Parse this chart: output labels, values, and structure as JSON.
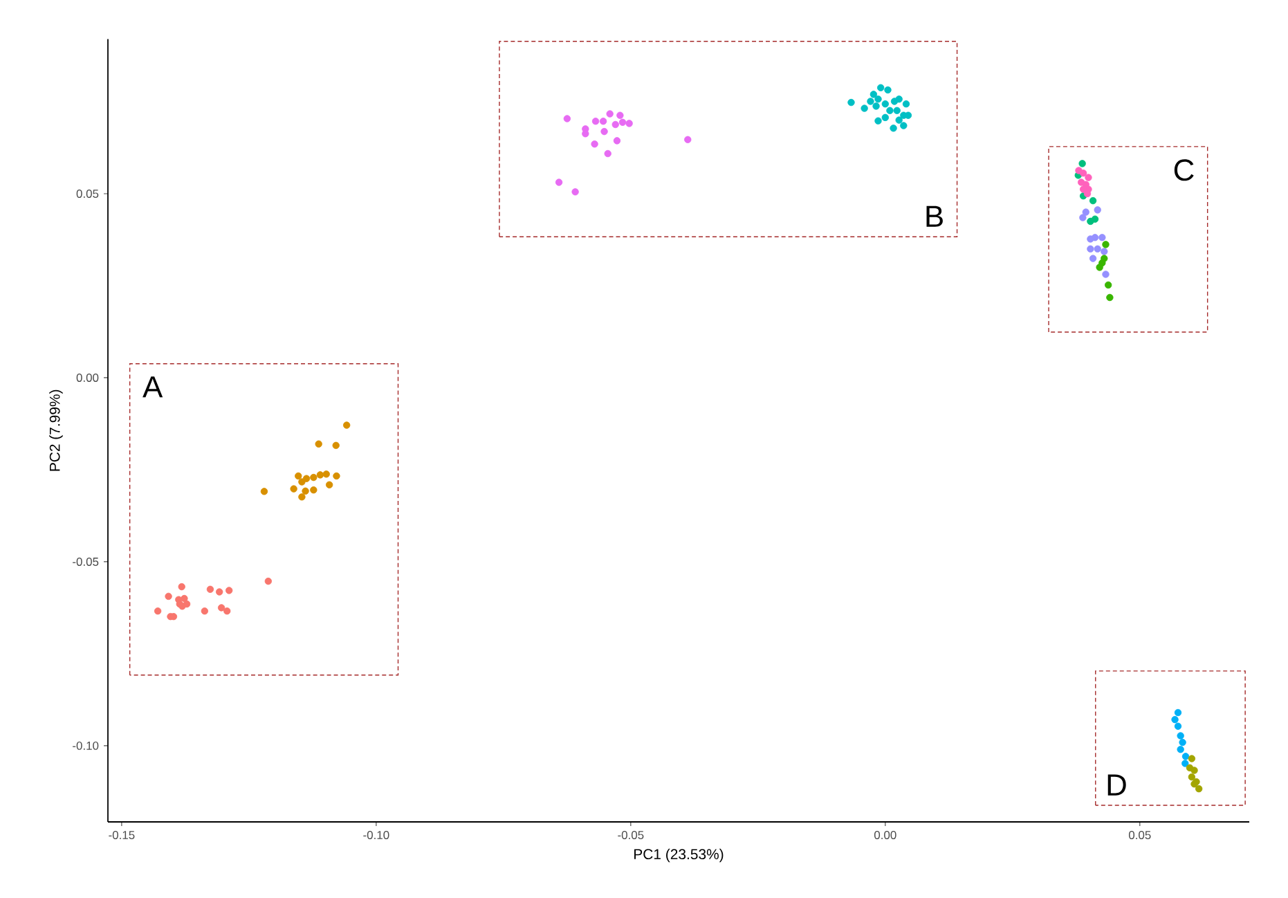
{
  "chart_data": {
    "type": "scatter",
    "xlabel": "PC1 (23.53%)",
    "ylabel": "PC2 (7.99%)",
    "xlim": [
      -0.1527,
      0.0715
    ],
    "ylim": [
      -0.1207,
      0.092
    ],
    "xticks": [
      {
        "value": -0.15,
        "label": "-0.15"
      },
      {
        "value": -0.1,
        "label": "-0.10"
      },
      {
        "value": -0.05,
        "label": "-0.05"
      },
      {
        "value": 0,
        "label": "0.00"
      },
      {
        "value": 0.05,
        "label": "0.05"
      }
    ],
    "yticks": [
      {
        "value": -0.1,
        "label": "-0.10"
      },
      {
        "value": -0.05,
        "label": "-0.05"
      },
      {
        "value": 0,
        "label": "0.00"
      },
      {
        "value": 0.05,
        "label": "0.05"
      }
    ],
    "grid": false,
    "marker": "circle",
    "series": [
      {
        "color": "#F8766D",
        "x": [
          -0.1429,
          -0.1408,
          -0.1404,
          -0.1398,
          -0.1382,
          -0.1388,
          -0.1377,
          -0.1381,
          -0.1372,
          -0.1386,
          -0.1337,
          -0.1326,
          -0.1308,
          -0.1289,
          -0.1304,
          -0.1293,
          -0.1212
        ],
        "values": [
          -0.0634,
          -0.0594,
          -0.0649,
          -0.0649,
          -0.0568,
          -0.0603,
          -0.06,
          -0.0621,
          -0.0615,
          -0.0615,
          -0.0634,
          -0.0575,
          -0.0582,
          -0.0578,
          -0.0625,
          -0.0634,
          -0.0553
        ]
      },
      {
        "color": "#D89000",
        "x": [
          -0.1058,
          -0.1113,
          -0.1079,
          -0.122,
          -0.1153,
          -0.1162,
          -0.1146,
          -0.1137,
          -0.1123,
          -0.111,
          -0.1098,
          -0.1078,
          -0.1092,
          -0.1123,
          -0.1146,
          -0.1139
        ],
        "values": [
          -0.0129,
          -0.018,
          -0.0184,
          -0.0309,
          -0.0267,
          -0.0302,
          -0.0283,
          -0.0274,
          -0.0271,
          -0.0264,
          -0.0262,
          -0.0267,
          -0.0291,
          -0.0305,
          -0.0324,
          -0.0308
        ]
      },
      {
        "color": "#E76BF3",
        "x": [
          -0.0625,
          -0.0589,
          -0.0589,
          -0.0569,
          -0.0554,
          -0.0541,
          -0.0521,
          -0.053,
          -0.0516,
          -0.0503,
          -0.0552,
          -0.0571,
          -0.0527,
          -0.0545,
          -0.0388,
          -0.0641,
          -0.0609
        ],
        "values": [
          0.0704,
          0.0676,
          0.0663,
          0.0697,
          0.0697,
          0.0717,
          0.0713,
          0.0688,
          0.0694,
          0.0691,
          0.0669,
          0.0635,
          0.0644,
          0.0609,
          0.0647,
          0.0531,
          0.0505
        ]
      },
      {
        "color": "#00BFC4",
        "x": [
          -0.0067,
          -0.0041,
          -0.0029,
          -0.0023,
          -0.0009,
          0.0005,
          -0.0014,
          0.0,
          0.0018,
          0.0027,
          0.0041,
          0.0009,
          0.0023,
          0.0036,
          0.0045,
          -0.0014,
          0.0,
          0.0016,
          0.0036,
          0.0027,
          -0.0018
        ],
        "values": [
          0.0748,
          0.0732,
          0.0751,
          0.077,
          0.0788,
          0.0782,
          0.0757,
          0.0744,
          0.0751,
          0.0757,
          0.0744,
          0.0726,
          0.0726,
          0.0713,
          0.0713,
          0.0698,
          0.0707,
          0.0678,
          0.0685,
          0.07,
          0.0738
        ]
      },
      {
        "color": "#00BF7D",
        "x": [
          0.0387,
          0.0379,
          0.0389,
          0.0408,
          0.0403,
          0.0412
        ],
        "values": [
          0.0582,
          0.055,
          0.0494,
          0.0481,
          0.0425,
          0.0431
        ]
      },
      {
        "color": "#FF62BC",
        "x": [
          0.038,
          0.0389,
          0.0399,
          0.0385,
          0.0394,
          0.0399,
          0.0389,
          0.0397
        ],
        "values": [
          0.0563,
          0.0556,
          0.0544,
          0.0531,
          0.0525,
          0.0512,
          0.0512,
          0.05
        ]
      },
      {
        "color": "#9590FF",
        "x": [
          0.0394,
          0.0417,
          0.0388,
          0.0403,
          0.0412,
          0.0426,
          0.0403,
          0.0417,
          0.0408,
          0.043,
          0.0433
        ],
        "values": [
          0.045,
          0.0456,
          0.0435,
          0.0377,
          0.0381,
          0.0381,
          0.035,
          0.035,
          0.0324,
          0.0343,
          0.0281
        ]
      },
      {
        "color": "#39B600",
        "x": [
          0.0433,
          0.043,
          0.0421,
          0.0426,
          0.0438,
          0.0441
        ],
        "values": [
          0.0362,
          0.0324,
          0.03,
          0.0312,
          0.0252,
          0.0218
        ]
      },
      {
        "color": "#00B0F6",
        "x": [
          0.0575,
          0.0569,
          0.0575,
          0.058,
          0.0584,
          0.058,
          0.059,
          0.0589
        ],
        "values": [
          -0.091,
          -0.0929,
          -0.0947,
          -0.0973,
          -0.0991,
          -0.101,
          -0.1029,
          -0.1048
        ]
      },
      {
        "color": "#A3A500",
        "x": [
          0.0602,
          0.0598,
          0.0607,
          0.0602,
          0.0611,
          0.0616,
          0.0607
        ],
        "values": [
          -0.1035,
          -0.106,
          -0.1067,
          -0.1085,
          -0.1098,
          -0.1117,
          -0.1104
        ]
      }
    ],
    "annotations": [
      "A",
      "B",
      "C",
      "D"
    ]
  }
}
